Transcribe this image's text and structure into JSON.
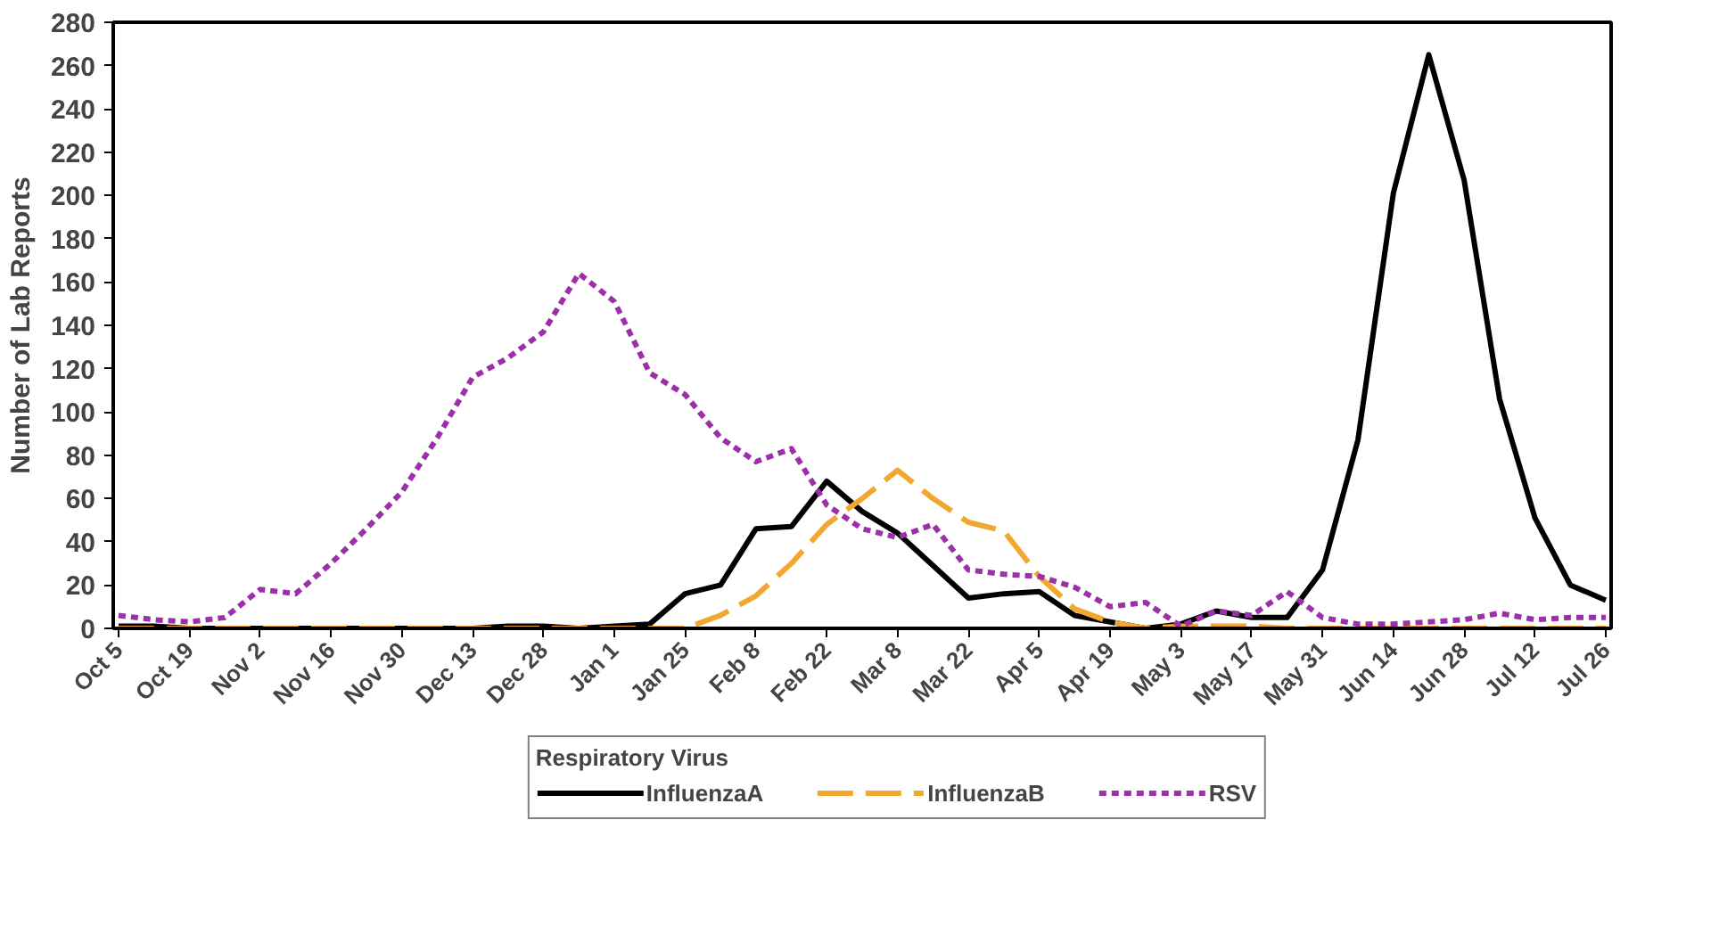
{
  "chart_data": {
    "type": "line",
    "ylabel": "Number of Lab Reports",
    "legend_title": "Respiratory Virus",
    "categories": [
      "Oct 5",
      null,
      "Oct 19",
      null,
      "Nov 2",
      null,
      "Nov 16",
      null,
      "Nov 30",
      null,
      "Dec 13",
      null,
      "Dec 28",
      null,
      "Jan 1",
      null,
      "Jan 25",
      null,
      "Feb 8",
      null,
      "Feb 22",
      null,
      "Mar 8",
      null,
      "Mar 22",
      null,
      "Apr 5",
      null,
      "Apr 19",
      null,
      "May 3",
      null,
      "May 17",
      null,
      "May 31",
      null,
      "Jun 14",
      null,
      "Jun 28",
      null,
      "Jul 12",
      null,
      "Jul 26"
    ],
    "ylim": [
      0,
      280
    ],
    "yticks": [
      0,
      20,
      40,
      60,
      80,
      100,
      120,
      140,
      160,
      180,
      200,
      220,
      240,
      260,
      280
    ],
    "grid": false,
    "legend": "bottom",
    "marker": "none",
    "series": [
      {
        "name": "InfluenzaA",
        "color": "#000000",
        "line_style": "solid",
        "values": [
          1,
          1,
          0,
          0,
          0,
          0,
          0,
          0,
          0,
          0,
          0,
          1,
          1,
          0,
          1,
          2,
          16,
          20,
          46,
          47,
          68,
          54,
          44,
          29,
          14,
          16,
          17,
          6,
          3,
          0,
          2,
          8,
          5,
          5,
          27,
          87,
          201,
          265,
          207,
          106,
          51,
          20,
          13
        ]
      },
      {
        "name": "InfluenzaB",
        "color": "#f0a830",
        "line_style": "dashed",
        "values": [
          0,
          0,
          0,
          0,
          0,
          0,
          0,
          0,
          0,
          0,
          0,
          0,
          0,
          0,
          0,
          0,
          0,
          6,
          15,
          30,
          48,
          60,
          73,
          60,
          49,
          45,
          24,
          9,
          3,
          0,
          1,
          1,
          1,
          0,
          0,
          0,
          0,
          0,
          0,
          0,
          0,
          0,
          0
        ]
      },
      {
        "name": "RSV",
        "color": "#9b30a8",
        "line_style": "dotted",
        "values": [
          6,
          4,
          3,
          5,
          18,
          16,
          30,
          46,
          63,
          88,
          116,
          125,
          137,
          164,
          151,
          118,
          108,
          88,
          77,
          83,
          57,
          46,
          42,
          48,
          27,
          25,
          24,
          19,
          10,
          12,
          1,
          8,
          6,
          17,
          5,
          2,
          2,
          3,
          4,
          7,
          4,
          5,
          5
        ]
      }
    ]
  }
}
